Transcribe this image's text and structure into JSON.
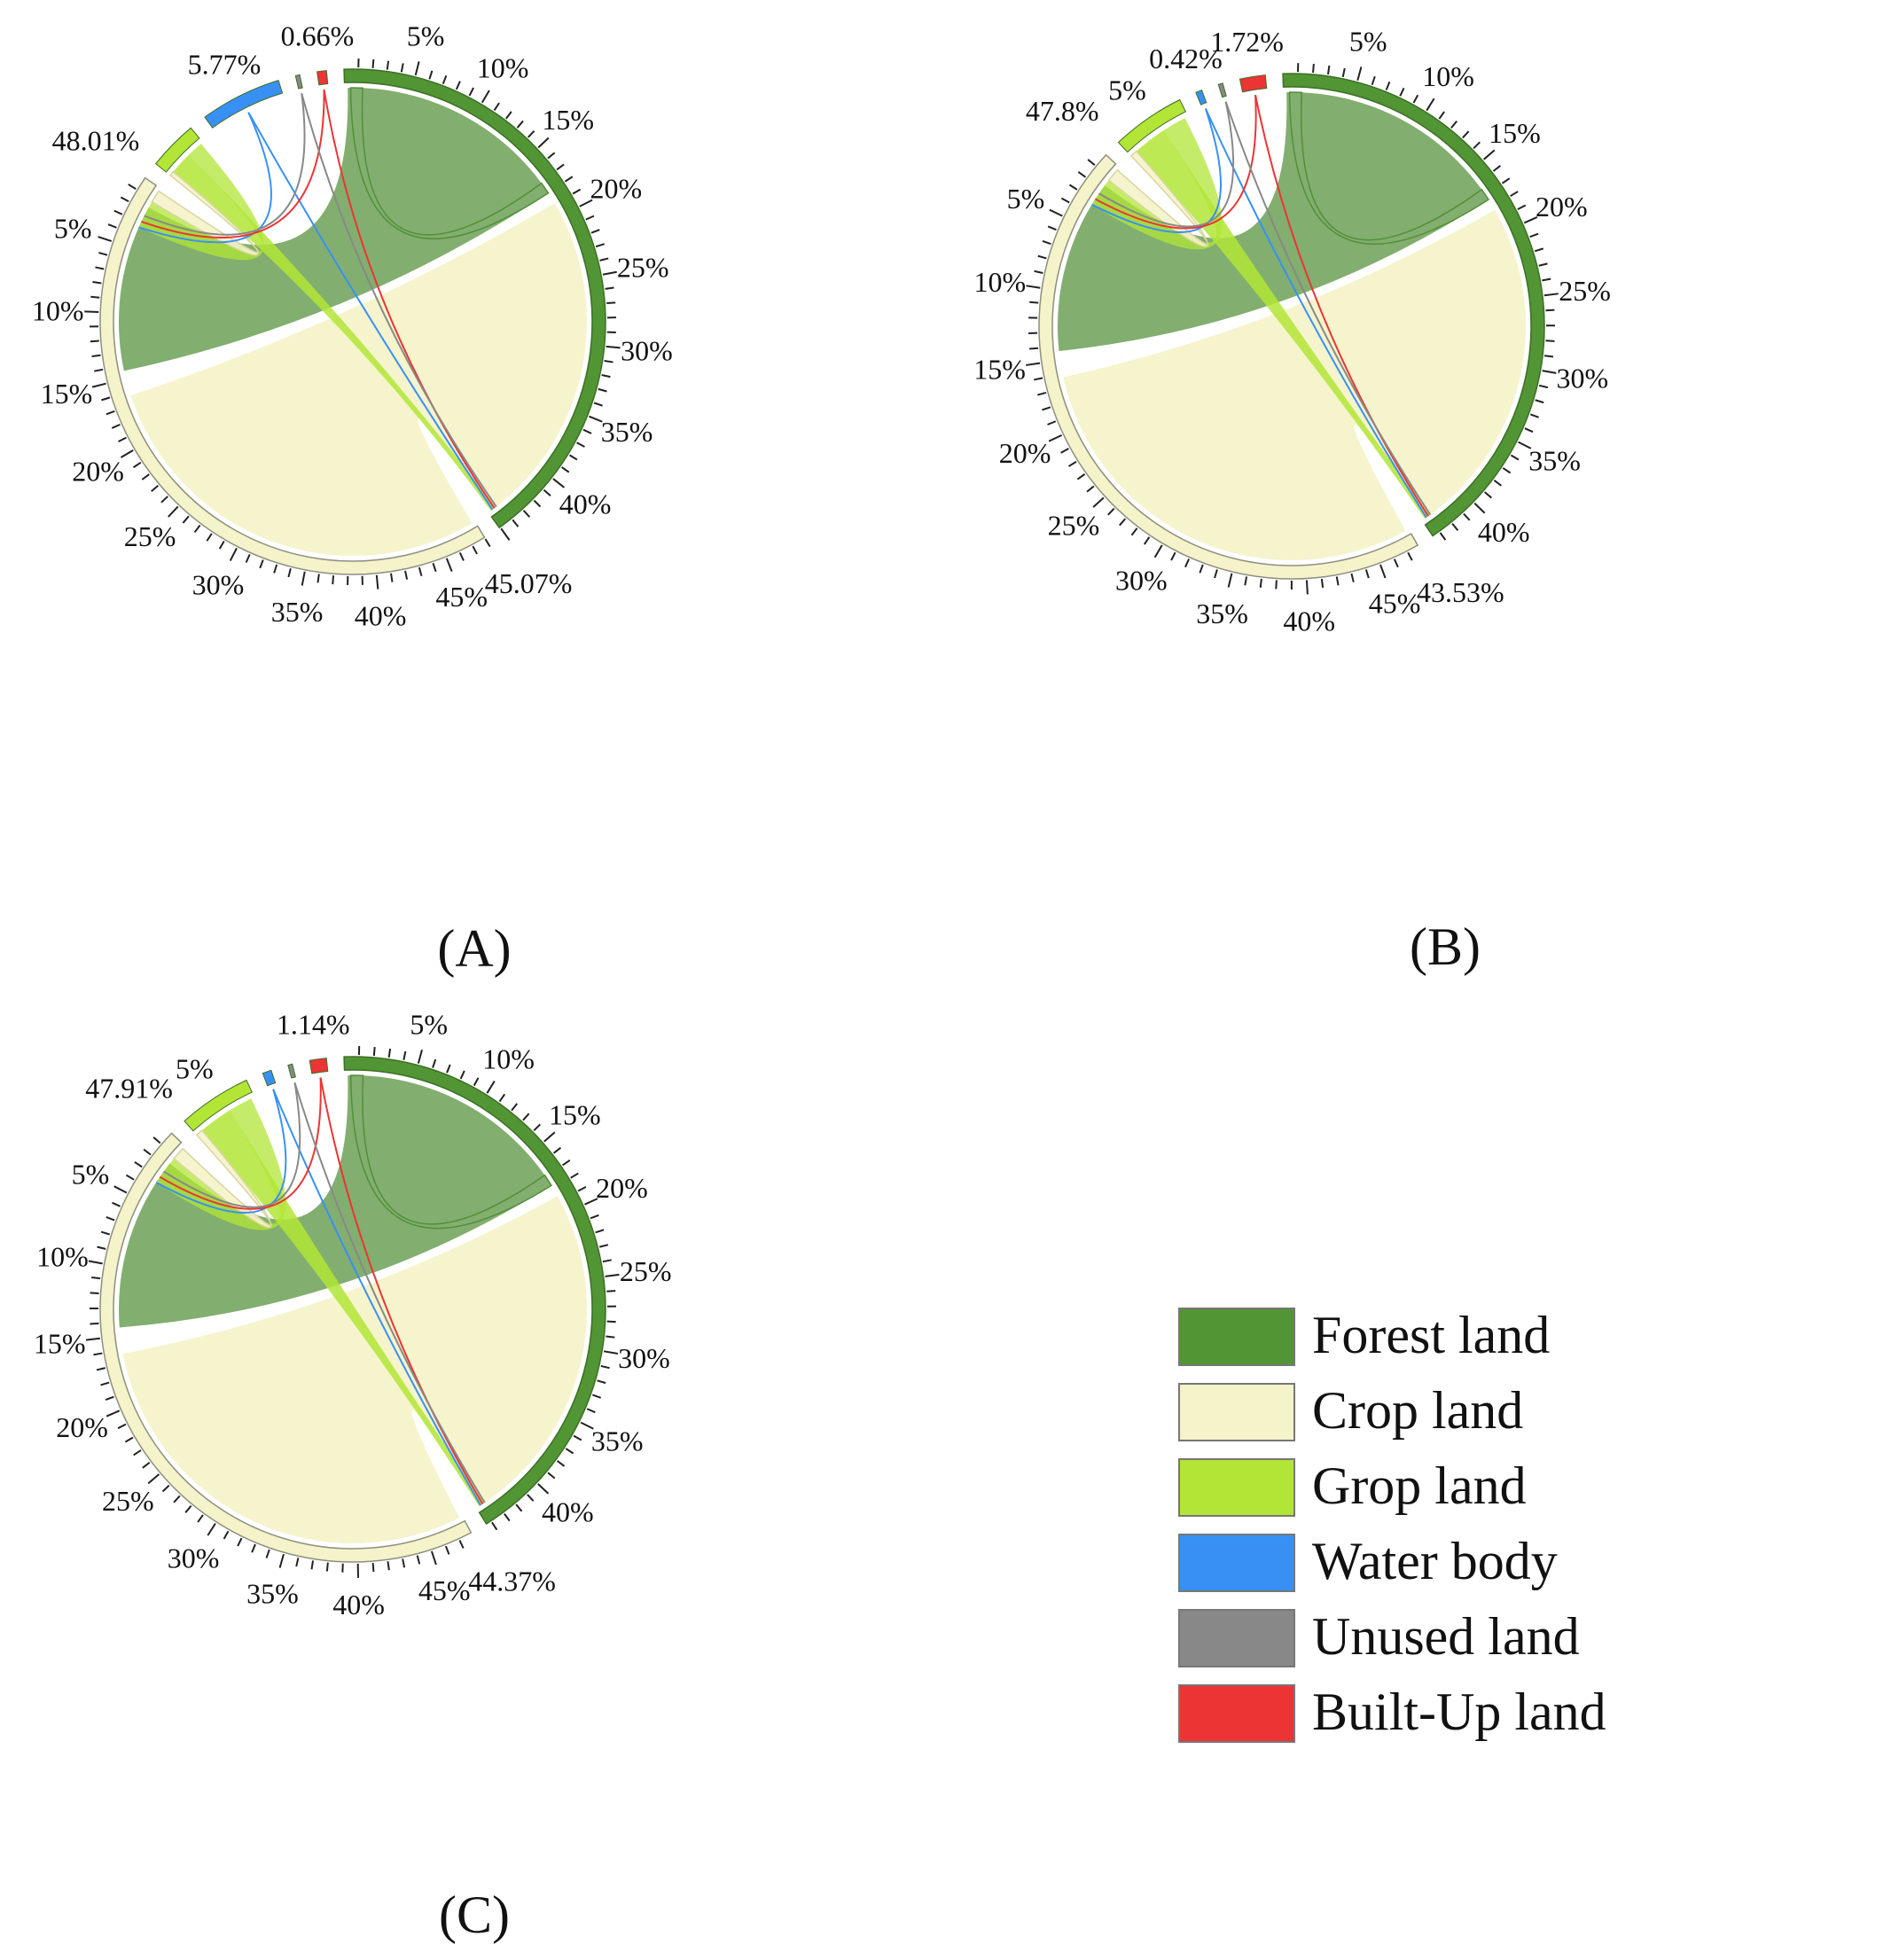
{
  "colors": {
    "forest": "#529535",
    "crop": "#F4F3C9",
    "grop": "#B2E536",
    "water": "#3890F5",
    "unused": "#888888",
    "builtup": "#EC3434",
    "forest_ribbon": "#528F38",
    "crop_edge": "#8E8E80"
  },
  "legend": {
    "items": [
      {
        "key": "forest",
        "label": "Forest land"
      },
      {
        "key": "crop",
        "label": "Crop land"
      },
      {
        "key": "grop",
        "label": "Grop land"
      },
      {
        "key": "water",
        "label": "Water body"
      },
      {
        "key": "unused",
        "label": "Unused land"
      },
      {
        "key": "builtup",
        "label": "Built-Up land"
      }
    ]
  },
  "chart_data": [
    {
      "type": "chord",
      "panel_label": "(A)",
      "sectors": [
        {
          "key": "forest",
          "share": 45.07,
          "label": "45.07%"
        },
        {
          "key": "crop",
          "share": 48.01,
          "label": "48.01%"
        },
        {
          "key": "grop",
          "share": 3.5
        },
        {
          "key": "water",
          "share": 5.77,
          "label": "5.77%"
        },
        {
          "key": "unused",
          "share": 0.3
        },
        {
          "key": "builtup",
          "share": 0.66,
          "label": "0.66%"
        }
      ],
      "forest_ticks": [
        "5%",
        "10%",
        "15%",
        "20%",
        "25%",
        "30%",
        "35%",
        "40%"
      ],
      "crop_ticks": [
        "5%",
        "10%",
        "15%",
        "20%",
        "25%",
        "30%",
        "35%",
        "40%",
        "45%"
      ],
      "flows": [
        {
          "from": "forest",
          "to": "forest",
          "weight": 16
        },
        {
          "from": "forest",
          "to": "crop",
          "weight": 13
        },
        {
          "from": "crop",
          "to": "crop",
          "weight": 28
        },
        {
          "from": "grop",
          "to": "crop",
          "weight": 1.6
        },
        {
          "from": "grop",
          "to": "forest",
          "weight": 0.8
        },
        {
          "from": "water",
          "to": "forest",
          "weight": 0.1
        },
        {
          "from": "builtup",
          "to": "forest",
          "weight": 0.1
        }
      ]
    },
    {
      "type": "chord",
      "panel_label": "(B)",
      "sectors": [
        {
          "key": "forest",
          "share": 43.53,
          "label": "43.53%"
        },
        {
          "key": "crop",
          "share": 47.8,
          "label": "47.8%"
        },
        {
          "key": "grop",
          "share": 5,
          "label": "5%"
        },
        {
          "key": "water",
          "share": 0.42,
          "label": "0.42%"
        },
        {
          "key": "unused",
          "share": 0.3
        },
        {
          "key": "builtup",
          "share": 1.72,
          "label": "1.72%"
        }
      ],
      "forest_ticks": [
        "5%",
        "10%",
        "15%",
        "20%",
        "25%",
        "30%",
        "35%",
        "40%"
      ],
      "crop_ticks": [
        "5%",
        "10%",
        "15%",
        "20%",
        "25%",
        "30%",
        "35%",
        "40%",
        "45%"
      ],
      "flows": [
        {
          "from": "forest",
          "to": "forest",
          "weight": 16
        },
        {
          "from": "forest",
          "to": "crop",
          "weight": 13
        },
        {
          "from": "crop",
          "to": "crop",
          "weight": 28
        },
        {
          "from": "grop",
          "to": "crop",
          "weight": 1.6
        },
        {
          "from": "grop",
          "to": "forest",
          "weight": 0.8
        },
        {
          "from": "water",
          "to": "forest",
          "weight": 0.1
        },
        {
          "from": "builtup",
          "to": "forest",
          "weight": 0.1
        }
      ]
    },
    {
      "type": "chord",
      "panel_label": "(C)",
      "sectors": [
        {
          "key": "forest",
          "share": 44.37,
          "label": "44.37%"
        },
        {
          "key": "crop",
          "share": 47.91,
          "label": "47.91%"
        },
        {
          "key": "grop",
          "share": 5,
          "label": "5%"
        },
        {
          "key": "water",
          "share": 0.6
        },
        {
          "key": "unused",
          "share": 0.3
        },
        {
          "key": "builtup",
          "share": 1.14,
          "label": "1.14%"
        }
      ],
      "forest_ticks": [
        "5%",
        "10%",
        "15%",
        "20%",
        "25%",
        "30%",
        "35%",
        "40%"
      ],
      "crop_ticks": [
        "5%",
        "10%",
        "15%",
        "20%",
        "25%",
        "30%",
        "35%",
        "40%",
        "45%"
      ],
      "flows": [
        {
          "from": "forest",
          "to": "forest",
          "weight": 16
        },
        {
          "from": "forest",
          "to": "crop",
          "weight": 13
        },
        {
          "from": "crop",
          "to": "crop",
          "weight": 28
        },
        {
          "from": "grop",
          "to": "crop",
          "weight": 1.6
        },
        {
          "from": "grop",
          "to": "forest",
          "weight": 0.8
        },
        {
          "from": "water",
          "to": "forest",
          "weight": 0.1
        },
        {
          "from": "builtup",
          "to": "forest",
          "weight": 0.1
        }
      ]
    }
  ]
}
